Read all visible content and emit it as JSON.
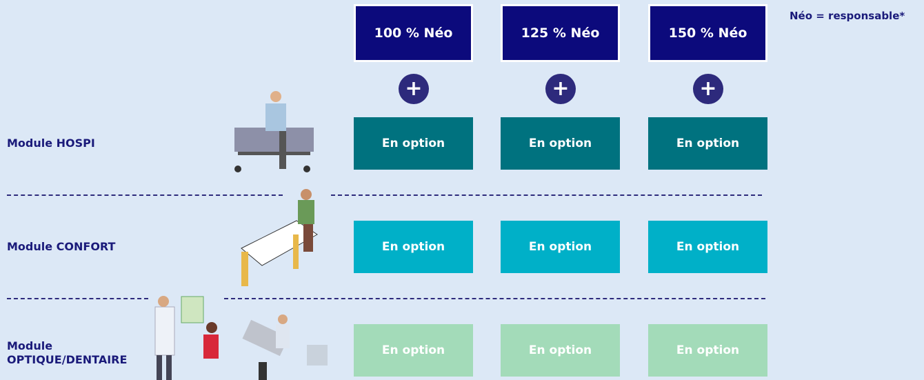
{
  "note": "Néo = responsable*",
  "columns": [
    "100 % Néo",
    "125 % Néo",
    "150 % Néo"
  ],
  "rows": [
    {
      "label": "Module HOSPI",
      "options": [
        "En option",
        "En option",
        "En option"
      ]
    },
    {
      "label": "Module CONFORT",
      "options": [
        "En option",
        "En option",
        "En option"
      ]
    },
    {
      "label": "Module OPTIQUE/DENTAIRE",
      "options": [
        "En option",
        "En option",
        "En option"
      ]
    }
  ]
}
